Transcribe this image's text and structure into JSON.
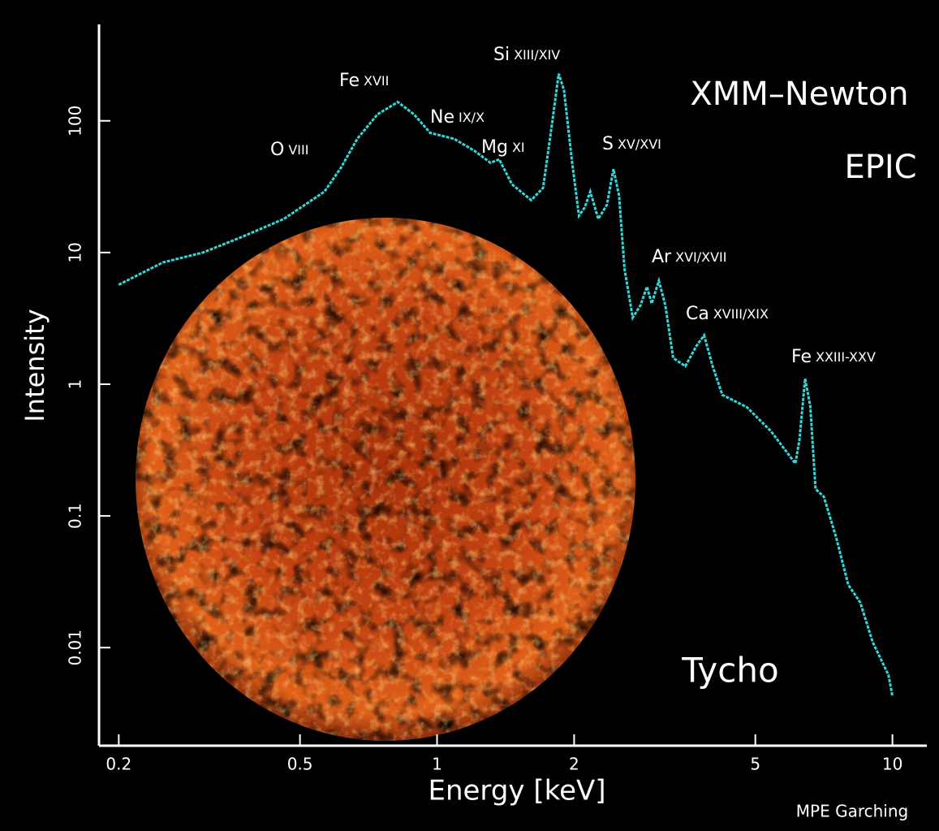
{
  "chart_data": {
    "type": "line",
    "title": "XMM–Newton",
    "subtitle": "EPIC",
    "object_label": "Tycho",
    "credit": "MPE Garching",
    "x_label": "Energy [keV]",
    "y_label": "Intensity",
    "log_x": true,
    "log_y": true,
    "xlim": [
      0.181,
      11.9
    ],
    "ylim": [
      0.0018,
      540
    ],
    "xticks": [
      0.2,
      0.5,
      1,
      2,
      5,
      10
    ],
    "yticks": [
      0.01,
      0.1,
      1,
      10,
      100
    ],
    "line_annotations": [
      {
        "element": "O",
        "ion": "VIII"
      },
      {
        "element": "Fe",
        "ion": "XVII"
      },
      {
        "element": "Ne",
        "ion": "IX/X"
      },
      {
        "element": "Mg",
        "ion": "XI"
      },
      {
        "element": "Si",
        "ion": "XIII/XIV"
      },
      {
        "element": "S",
        "ion": "XV/XVI"
      },
      {
        "element": "Ar",
        "ion": "XVI/XVII"
      },
      {
        "element": "Ca",
        "ion": "XVIII/XIX"
      },
      {
        "element": "Fe",
        "ion": "XXIII-XXV"
      }
    ],
    "x": [
      0.2,
      0.25,
      0.306,
      0.376,
      0.461,
      0.566,
      0.615,
      0.668,
      0.74,
      0.82,
      0.89,
      0.966,
      1.09,
      1.21,
      1.31,
      1.37,
      1.46,
      1.61,
      1.71,
      1.79,
      1.85,
      1.9,
      1.98,
      2.05,
      2.11,
      2.17,
      2.26,
      2.36,
      2.44,
      2.51,
      2.58,
      2.69,
      2.8,
      2.89,
      2.96,
      3.07,
      3.17,
      3.3,
      3.51,
      3.71,
      3.86,
      4.03,
      4.23,
      4.79,
      5.41,
      6.12,
      6.25,
      6.43,
      6.6,
      6.78,
      7.07,
      7.52,
      8.0,
      8.5,
      9.05,
      9.8,
      10.0
    ],
    "series": [
      {
        "color": "#35d6d8",
        "values": [
          5.7,
          8.4,
          10,
          13.3,
          18,
          29,
          44,
          73,
          112,
          139,
          112,
          81,
          73,
          59,
          48,
          51,
          33,
          25,
          31,
          97,
          228,
          171,
          48,
          19,
          22,
          29,
          18,
          23,
          43,
          27,
          7.5,
          3.2,
          4.0,
          5.5,
          4.1,
          6.1,
          4.0,
          1.58,
          1.37,
          1.95,
          2.35,
          1.37,
          0.83,
          0.67,
          0.44,
          0.25,
          0.38,
          1.1,
          0.68,
          0.16,
          0.14,
          0.069,
          0.03,
          0.022,
          0.011,
          0.0062,
          0.0043
        ]
      }
    ]
  }
}
